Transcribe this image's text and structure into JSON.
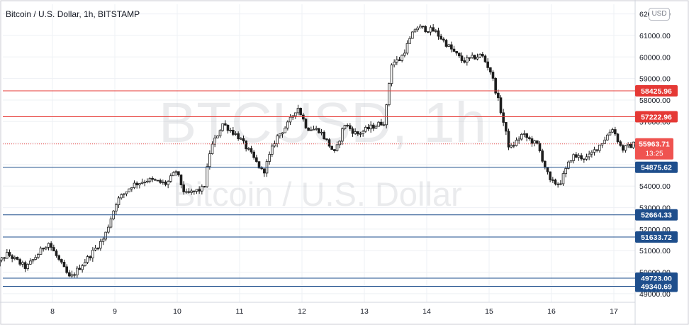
{
  "header": {
    "title": "Bitcoin / U.S. Dollar, 1h, BITSTAMP",
    "currency": "USD"
  },
  "watermark": {
    "symbol": "BTCUSD, 1h",
    "name": "Bitcoin / U.S. Dollar"
  },
  "colors": {
    "up": "#26a69a",
    "down": "#ef5350",
    "candle_up_body": "#ffffff",
    "candle_down_body": "#1e1e1e",
    "resistance": "#e53935",
    "support": "#1e4e8c",
    "grid": "#eef0f4",
    "axis_text": "#131722",
    "watermark": "rgba(180,182,190,0.28)"
  },
  "chart_data": {
    "type": "candlestick",
    "symbol": "BTCUSD",
    "timeframe": "1h",
    "exchange": "BITSTAMP",
    "x_ticks": [
      "8",
      "9",
      "10",
      "11",
      "12",
      "13",
      "14",
      "15",
      "16",
      "17"
    ],
    "y_ticks": [
      62000,
      61000,
      60000,
      59000,
      58000,
      57000,
      56000,
      55000,
      54000,
      53000,
      52000,
      51000,
      50000,
      49000
    ],
    "y_tick_labels": [
      "62000.00",
      "61000.00",
      "60000.00",
      "59000.00",
      "58000.00",
      "57000.00",
      "56000.00",
      "55000.00",
      "54000.00",
      "53000.00",
      "52000.00",
      "51000.00",
      "50000.00",
      "49000.00"
    ],
    "ylim": [
      48600,
      62450
    ],
    "grid": true,
    "current_price": {
      "value": 55963.71,
      "label": "55963.71",
      "countdown": "13:25"
    },
    "horizontal_levels": [
      {
        "value": 58425.96,
        "label": "58425.96",
        "role": "resistance"
      },
      {
        "value": 57222.96,
        "label": "57222.96",
        "role": "resistance"
      },
      {
        "value": 54875.62,
        "label": "54875.62",
        "role": "support"
      },
      {
        "value": 52664.33,
        "label": "52664.33",
        "role": "support"
      },
      {
        "value": 51633.72,
        "label": "51633.72",
        "role": "support"
      },
      {
        "value": 49723.0,
        "label": "49723.00",
        "role": "support"
      },
      {
        "value": 49340.69,
        "label": "49340.69",
        "role": "support"
      }
    ],
    "path_points": [
      {
        "day": 7.0,
        "price": 49300
      },
      {
        "day": 7.1,
        "price": 50300
      },
      {
        "day": 7.3,
        "price": 50850
      },
      {
        "day": 7.6,
        "price": 50200
      },
      {
        "day": 7.95,
        "price": 51400
      },
      {
        "day": 8.3,
        "price": 49700
      },
      {
        "day": 8.6,
        "price": 50700
      },
      {
        "day": 8.85,
        "price": 51600
      },
      {
        "day": 9.05,
        "price": 53300
      },
      {
        "day": 9.3,
        "price": 54050
      },
      {
        "day": 9.55,
        "price": 54300
      },
      {
        "day": 9.85,
        "price": 54100
      },
      {
        "day": 10.0,
        "price": 54700
      },
      {
        "day": 10.15,
        "price": 53600
      },
      {
        "day": 10.45,
        "price": 53900
      },
      {
        "day": 10.55,
        "price": 55700
      },
      {
        "day": 10.75,
        "price": 56900
      },
      {
        "day": 11.0,
        "price": 56300
      },
      {
        "day": 11.2,
        "price": 55500
      },
      {
        "day": 11.4,
        "price": 54600
      },
      {
        "day": 11.6,
        "price": 56200
      },
      {
        "day": 11.8,
        "price": 56900
      },
      {
        "day": 11.95,
        "price": 57700
      },
      {
        "day": 12.1,
        "price": 56700
      },
      {
        "day": 12.3,
        "price": 56600
      },
      {
        "day": 12.55,
        "price": 55500
      },
      {
        "day": 12.7,
        "price": 56900
      },
      {
        "day": 12.9,
        "price": 56400
      },
      {
        "day": 13.1,
        "price": 56700
      },
      {
        "day": 13.35,
        "price": 57000
      },
      {
        "day": 13.45,
        "price": 59700
      },
      {
        "day": 13.6,
        "price": 59900
      },
      {
        "day": 13.85,
        "price": 61400
      },
      {
        "day": 14.15,
        "price": 61200
      },
      {
        "day": 14.4,
        "price": 60400
      },
      {
        "day": 14.6,
        "price": 59800
      },
      {
        "day": 14.9,
        "price": 60100
      },
      {
        "day": 15.05,
        "price": 59300
      },
      {
        "day": 15.2,
        "price": 57600
      },
      {
        "day": 15.35,
        "price": 55700
      },
      {
        "day": 15.55,
        "price": 56400
      },
      {
        "day": 15.8,
        "price": 55900
      },
      {
        "day": 16.0,
        "price": 54200
      },
      {
        "day": 16.15,
        "price": 54100
      },
      {
        "day": 16.35,
        "price": 55400
      },
      {
        "day": 16.6,
        "price": 55300
      },
      {
        "day": 16.85,
        "price": 56100
      },
      {
        "day": 17.0,
        "price": 56700
      },
      {
        "day": 17.15,
        "price": 55700
      },
      {
        "day": 17.35,
        "price": 55960
      }
    ]
  }
}
